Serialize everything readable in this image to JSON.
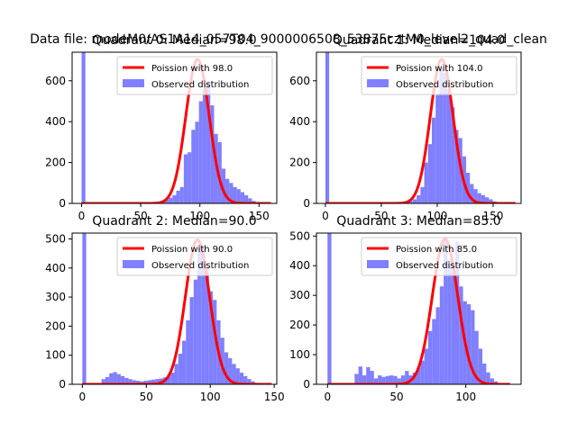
{
  "figure_title": "Data file: modeM0/AS1A14_057T04_9000006508_53875cztM0_level2_quad_clean",
  "colors": {
    "observed": "#7f7fff",
    "poisson": "#ff0000",
    "axis": "#000000"
  },
  "chart_data": [
    {
      "type": "bar",
      "title": "Quadrant 0: Median=98.0",
      "xlim": [
        -8,
        165
      ],
      "ylim": [
        0,
        740
      ],
      "xticks": [
        0,
        50,
        100,
        150
      ],
      "yticks": [
        0,
        200,
        400,
        600
      ],
      "legend": {
        "placement": "top-right",
        "line_label": "Poission with 98.0",
        "bar_label": "Observed distribution"
      },
      "series": [
        {
          "name": "Observed distribution",
          "type": "histogram",
          "bin_width": 3.2,
          "bins": [
            [
              0,
              740
            ],
            [
              51.2,
              3
            ],
            [
              54.4,
              3
            ],
            [
              57.6,
              4
            ],
            [
              60.8,
              5
            ],
            [
              64.0,
              8
            ],
            [
              67.2,
              14
            ],
            [
              70.4,
              18
            ],
            [
              73.6,
              28
            ],
            [
              76.8,
              40
            ],
            [
              80.0,
              62
            ],
            [
              83.2,
              80
            ],
            [
              86.4,
              240
            ],
            [
              89.6,
              250
            ],
            [
              92.8,
              360
            ],
            [
              96.0,
              400
            ],
            [
              99.2,
              500
            ],
            [
              102.4,
              560
            ],
            [
              105.6,
              600
            ],
            [
              108.8,
              480
            ],
            [
              112.0,
              340
            ],
            [
              115.2,
              300
            ],
            [
              118.4,
              170
            ],
            [
              121.6,
              120
            ],
            [
              124.8,
              100
            ],
            [
              128.0,
              80
            ],
            [
              131.2,
              70
            ],
            [
              134.4,
              55
            ],
            [
              137.6,
              40
            ],
            [
              140.8,
              25
            ],
            [
              144.0,
              12
            ],
            [
              147.2,
              5
            ]
          ]
        },
        {
          "name": "Poission with 98.0",
          "type": "line",
          "lambda": 98.0,
          "peak": 705,
          "x_range": [
            0,
            160
          ]
        }
      ]
    },
    {
      "type": "bar",
      "title": "Quadrant 1: Median=104.0",
      "xlim": [
        -8,
        175
      ],
      "ylim": [
        0,
        740
      ],
      "xticks": [
        0,
        50,
        100,
        150
      ],
      "yticks": [
        0,
        200,
        400,
        600
      ],
      "legend": {
        "placement": "top-right",
        "line_label": "Poission with 104.0",
        "bar_label": "Observed distribution"
      },
      "series": [
        {
          "name": "Observed distribution",
          "type": "histogram",
          "bin_width": 3.4,
          "bins": [
            [
              0,
              740
            ],
            [
              64.6,
              4
            ],
            [
              68.0,
              5
            ],
            [
              71.4,
              10
            ],
            [
              74.8,
              12
            ],
            [
              78.2,
              20
            ],
            [
              81.6,
              40
            ],
            [
              85.0,
              80
            ],
            [
              88.4,
              200
            ],
            [
              91.8,
              290
            ],
            [
              95.2,
              420
            ],
            [
              98.6,
              530
            ],
            [
              102.0,
              660
            ],
            [
              105.4,
              640
            ],
            [
              108.8,
              560
            ],
            [
              112.2,
              470
            ],
            [
              115.6,
              360
            ],
            [
              119.0,
              320
            ],
            [
              122.4,
              230
            ],
            [
              125.8,
              150
            ],
            [
              129.2,
              95
            ],
            [
              132.6,
              70
            ],
            [
              136.0,
              50
            ],
            [
              139.4,
              40
            ],
            [
              142.8,
              30
            ],
            [
              146.2,
              20
            ],
            [
              149.6,
              10
            ],
            [
              153.0,
              5
            ]
          ]
        },
        {
          "name": "Poission with 104.0",
          "type": "line",
          "lambda": 104.0,
          "peak": 705,
          "x_range": [
            0,
            170
          ]
        }
      ]
    },
    {
      "type": "bar",
      "title": "Quadrant 2: Median=90.0",
      "xlim": [
        -8,
        152
      ],
      "ylim": [
        0,
        520
      ],
      "xticks": [
        0,
        50,
        100,
        150
      ],
      "yticks": [
        0,
        100,
        200,
        300,
        400,
        500
      ],
      "legend": {
        "placement": "top-right",
        "line_label": "Poission with 90.0",
        "bar_label": "Observed distribution"
      },
      "series": [
        {
          "name": "Observed distribution",
          "type": "histogram",
          "bin_width": 3.0,
          "bins": [
            [
              0,
              520
            ],
            [
              15,
              18
            ],
            [
              18,
              25
            ],
            [
              21,
              38
            ],
            [
              24,
              42
            ],
            [
              27,
              35
            ],
            [
              30,
              28
            ],
            [
              33,
              22
            ],
            [
              36,
              18
            ],
            [
              39,
              14
            ],
            [
              42,
              12
            ],
            [
              45,
              10
            ],
            [
              48,
              12
            ],
            [
              51,
              14
            ],
            [
              54,
              16
            ],
            [
              57,
              18
            ],
            [
              60,
              20
            ],
            [
              63,
              24
            ],
            [
              66,
              30
            ],
            [
              69,
              40
            ],
            [
              72,
              70
            ],
            [
              75,
              105
            ],
            [
              78,
              150
            ],
            [
              81,
              220
            ],
            [
              84,
              300
            ],
            [
              87,
              360
            ],
            [
              90,
              480
            ],
            [
              93,
              480
            ],
            [
              96,
              400
            ],
            [
              99,
              320
            ],
            [
              102,
              290
            ],
            [
              105,
              220
            ],
            [
              108,
              160
            ],
            [
              111,
              110
            ],
            [
              114,
              90
            ],
            [
              117,
              70
            ],
            [
              120,
              55
            ],
            [
              123,
              40
            ],
            [
              126,
              28
            ],
            [
              129,
              18
            ],
            [
              132,
              10
            ],
            [
              135,
              5
            ]
          ]
        },
        {
          "name": "Poission with 90.0",
          "type": "line",
          "lambda": 90.0,
          "peak": 497,
          "x_range": [
            0,
            148
          ]
        }
      ]
    },
    {
      "type": "bar",
      "title": "Quadrant 3: Median=85.0",
      "xlim": [
        -8,
        140
      ],
      "ylim": [
        0,
        510
      ],
      "xticks": [
        0,
        50,
        100
      ],
      "yticks": [
        0,
        100,
        200,
        300,
        400,
        500
      ],
      "legend": {
        "placement": "top-right",
        "line_label": "Poission with 85.0",
        "bar_label": "Observed distribution"
      },
      "series": [
        {
          "name": "Observed distribution",
          "type": "histogram",
          "bin_width": 2.8,
          "bins": [
            [
              0,
              510
            ],
            [
              19.6,
              35
            ],
            [
              22.4,
              60
            ],
            [
              25.2,
              30
            ],
            [
              28.0,
              58
            ],
            [
              30.8,
              45
            ],
            [
              33.6,
              20
            ],
            [
              36.4,
              30
            ],
            [
              39.2,
              25
            ],
            [
              42.0,
              28
            ],
            [
              44.8,
              30
            ],
            [
              47.6,
              28
            ],
            [
              50.4,
              20
            ],
            [
              53.2,
              30
            ],
            [
              56.0,
              45
            ],
            [
              58.8,
              30
            ],
            [
              61.6,
              40
            ],
            [
              64.4,
              55
            ],
            [
              67.2,
              80
            ],
            [
              70.0,
              120
            ],
            [
              72.8,
              180
            ],
            [
              75.6,
              220
            ],
            [
              78.4,
              260
            ],
            [
              81.2,
              330
            ],
            [
              84.0,
              490
            ],
            [
              86.8,
              420
            ],
            [
              89.6,
              380
            ],
            [
              92.4,
              480
            ],
            [
              95.2,
              330
            ],
            [
              98.0,
              280
            ],
            [
              100.8,
              270
            ],
            [
              103.6,
              250
            ],
            [
              106.4,
              180
            ],
            [
              109.2,
              120
            ],
            [
              112.0,
              70
            ],
            [
              114.8,
              40
            ],
            [
              117.6,
              20
            ],
            [
              120.4,
              10
            ]
          ]
        },
        {
          "name": "Poission with 85.0",
          "type": "line",
          "lambda": 85.0,
          "peak": 490,
          "x_range": [
            0,
            132
          ]
        }
      ]
    }
  ]
}
